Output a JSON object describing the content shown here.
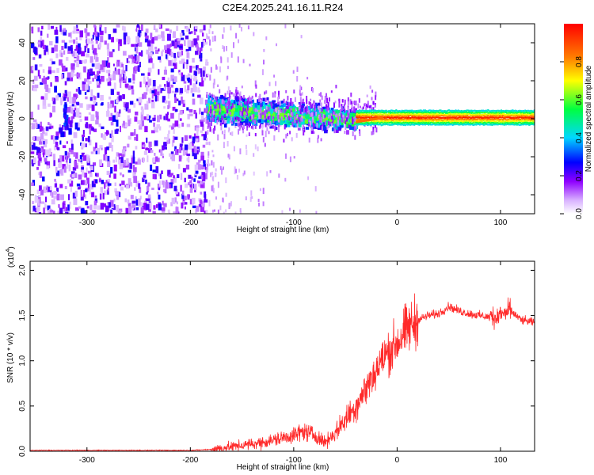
{
  "title": "C2E4.2025.241.16.11.R24",
  "chart_data": [
    {
      "type": "heatmap",
      "title": "C2E4.2025.241.16.11.R24",
      "xlabel": "Height of straight line (km)",
      "ylabel": "Frequency (Hz)",
      "xlim": [
        -355,
        133
      ],
      "ylim": [
        -50,
        50
      ],
      "xticks": [
        -300,
        -200,
        -100,
        0,
        100
      ],
      "yticks": [
        -40,
        -20,
        0,
        20,
        40
      ],
      "colorbar": {
        "label": "Normalized spectral amplitude",
        "range": [
          0.0,
          1.0
        ],
        "ticks": [
          0.0,
          0.2,
          0.4,
          0.6,
          0.8
        ],
        "colors": [
          "#ffffff",
          "#d9b3ff",
          "#8f00ff",
          "#0000ff",
          "#00d7ff",
          "#00ff40",
          "#ffff00",
          "#ff8000",
          "#ff0000"
        ]
      },
      "regions": [
        {
          "name": "noise",
          "x": [
            -355,
            -185
          ],
          "freq": [
            -50,
            50
          ],
          "amplitude": 0.15
        },
        {
          "name": "transition-band",
          "x": [
            -185,
            -40
          ],
          "freq_center": [
            6,
            0
          ],
          "freq_halfwidth": 10,
          "amplitude": 0.45
        },
        {
          "name": "carrier-line",
          "x": [
            -40,
            133
          ],
          "freq_center": 1,
          "amplitude": 0.95
        }
      ]
    },
    {
      "type": "line",
      "xlabel": "Height of straight line (km)",
      "ylabel": "SNR (10 * v/v)",
      "multiplier": "(x10",
      "multiplier_exp": "4",
      "multiplier_close": ")",
      "xlim": [
        -355,
        133
      ],
      "ylim": [
        0,
        2.1
      ],
      "xticks": [
        -300,
        -200,
        -100,
        0,
        100
      ],
      "yticks": [
        0.0,
        0.5,
        1.0,
        1.5,
        2.0
      ],
      "ytick_labels": [
        "0.0",
        "0.5",
        "1.0",
        "1.5",
        "2.0"
      ],
      "series": [
        {
          "name": "SNR",
          "color": "#ff2a2a",
          "x": [
            -355,
            -300,
            -250,
            -200,
            -180,
            -160,
            -140,
            -120,
            -100,
            -90,
            -80,
            -70,
            -60,
            -50,
            -40,
            -30,
            -20,
            -10,
            0,
            10,
            20,
            30,
            40,
            50,
            60,
            70,
            80,
            90,
            100,
            110,
            120,
            133
          ],
          "y": [
            0.01,
            0.01,
            0.01,
            0.01,
            0.02,
            0.05,
            0.08,
            0.12,
            0.18,
            0.22,
            0.18,
            0.1,
            0.2,
            0.35,
            0.5,
            0.7,
            0.9,
            1.08,
            1.2,
            1.35,
            1.45,
            1.5,
            1.52,
            1.6,
            1.55,
            1.52,
            1.5,
            1.48,
            1.5,
            1.55,
            1.45,
            1.42
          ]
        }
      ]
    }
  ]
}
